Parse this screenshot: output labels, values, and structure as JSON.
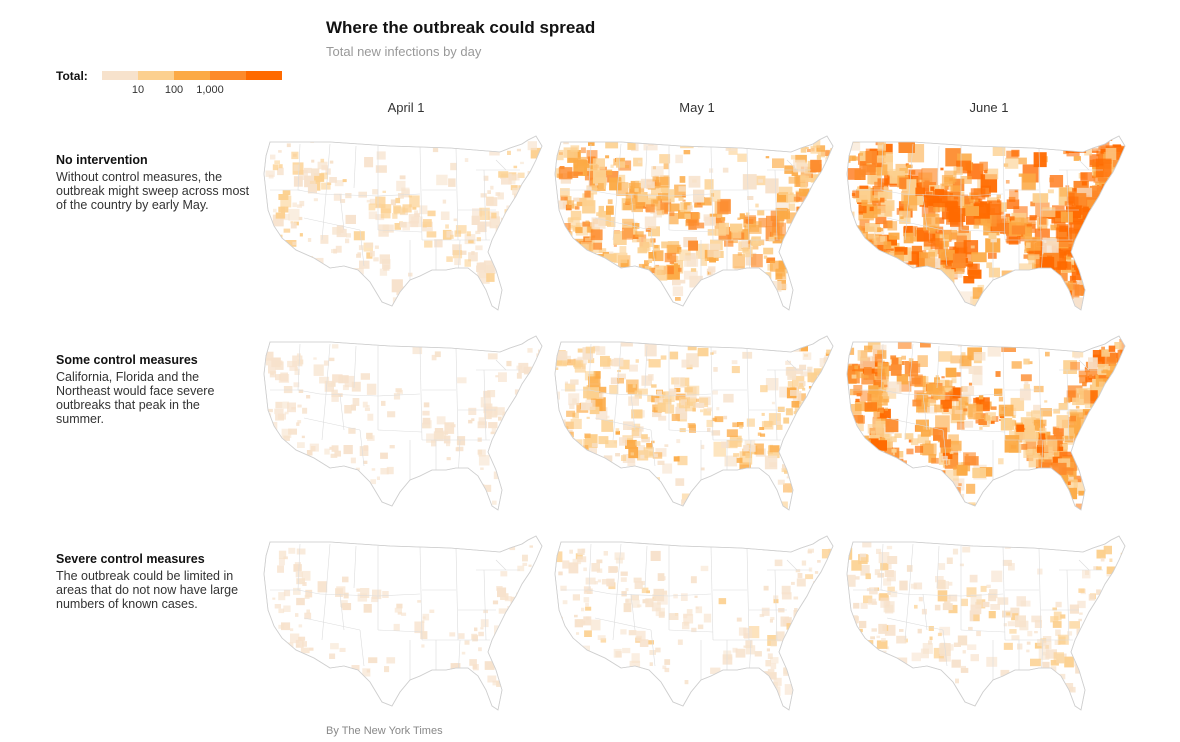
{
  "title": "Where the outbreak could spread",
  "subtitle": "Total new infections by day",
  "legend": {
    "label": "Total:",
    "colors": [
      "#f7e2cc",
      "#fcd08f",
      "#fcaa45",
      "#fd8a2b",
      "#ff6a00"
    ],
    "ticks": [
      "10",
      "100",
      "1,000"
    ]
  },
  "columns": [
    {
      "label": "April 1"
    },
    {
      "label": "May 1"
    },
    {
      "label": "June 1"
    }
  ],
  "rows": [
    {
      "title": "No intervention",
      "description": "Without control measures, the outbreak might sweep across most of the country by early May.",
      "intensity": [
        0.3,
        0.65,
        0.95
      ]
    },
    {
      "title": "Some control measures",
      "description": "California, Florida and the Northeast would face severe outbreaks that peak in the summer.",
      "intensity": [
        0.2,
        0.45,
        0.75
      ]
    },
    {
      "title": "Severe control measures",
      "description": "The outbreak could be limited in areas that do not now have large numbers of known cases.",
      "intensity": [
        0.12,
        0.22,
        0.28
      ]
    }
  ],
  "credit": "By The New York Times"
}
